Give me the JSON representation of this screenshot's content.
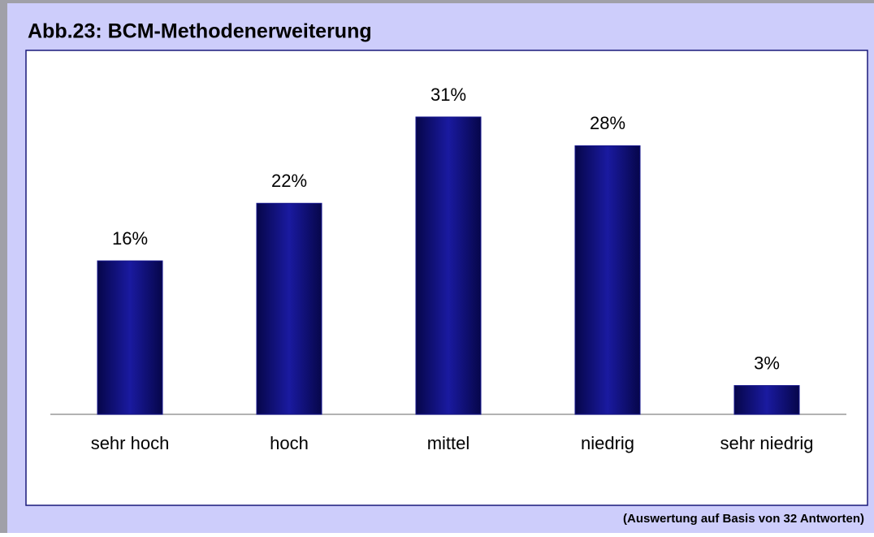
{
  "chart_data": {
    "type": "bar",
    "title": "Abb.23: BCM-Methodenerweiterung",
    "categories": [
      "sehr hoch",
      "hoch",
      "mittel",
      "niedrig",
      "sehr niedrig"
    ],
    "values": [
      16,
      22,
      31,
      28,
      3
    ],
    "value_labels": [
      "16%",
      "22%",
      "31%",
      "28%",
      "3%"
    ],
    "color": "#14148c",
    "note": "(Auswertung auf Basis von 32 Antworten)"
  }
}
